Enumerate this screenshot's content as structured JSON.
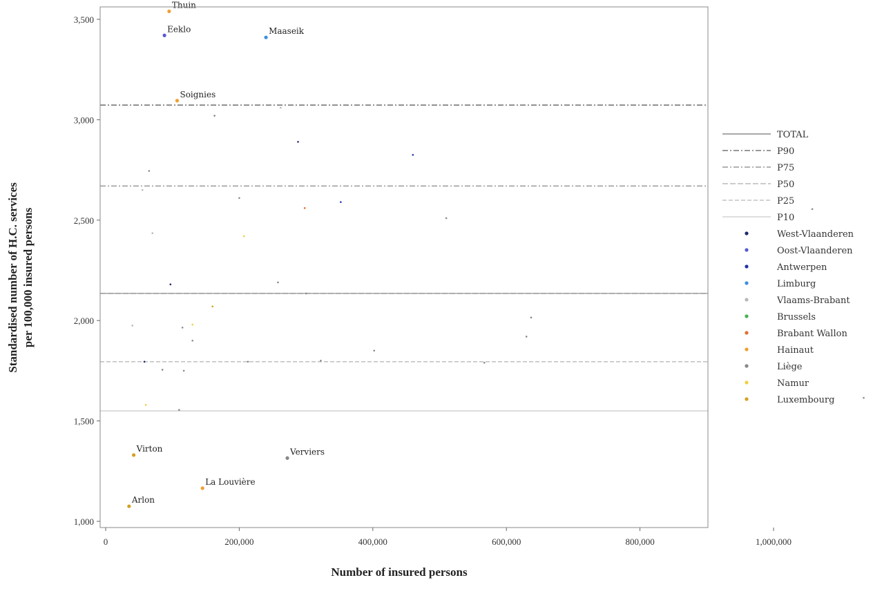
{
  "chart_data": {
    "type": "scatter",
    "title": "",
    "xlabel": "Number of insured persons",
    "ylabel_lines": [
      "Standardised number of H.C. services",
      "per 100,000 insured persons"
    ],
    "xlim": [
      -10000,
      1140000
    ],
    "ylim": [
      980,
      3560
    ],
    "x_ticks": [
      0,
      200000,
      400000,
      600000,
      800000,
      1000000
    ],
    "x_tick_labels": [
      "0",
      "200,000",
      "400,000",
      "600,000",
      "800,000",
      "1,000,000"
    ],
    "y_ticks": [
      1000,
      1500,
      2000,
      2500,
      3000,
      3500
    ],
    "y_tick_labels": [
      "1,000",
      "1,500",
      "2,000",
      "2,500",
      "3,000",
      "3,500"
    ],
    "grid": false,
    "legend_position": "right",
    "reference_lines": [
      {
        "name": "TOTAL",
        "y": 2135,
        "color": "#8c8c8c",
        "dash": ""
      },
      {
        "name": "P90",
        "y": 3073,
        "color": "#777777",
        "dash": "8 3 2 3"
      },
      {
        "name": "P75",
        "y": 2670,
        "color": "#999999",
        "dash": "8 3 2 3"
      },
      {
        "name": "P50",
        "y": 2135,
        "color": "#bbbbbb",
        "dash": "8 3"
      },
      {
        "name": "P25",
        "y": 1795,
        "color": "#c4c4c4",
        "dash": "6 3"
      },
      {
        "name": "P10",
        "y": 1550,
        "color": "#d4d4d4",
        "dash": ""
      }
    ],
    "provinces": [
      {
        "name": "West-Vlaanderen",
        "color": "#1f2a6b"
      },
      {
        "name": "Oost-Vlaanderen",
        "color": "#5a5ad0"
      },
      {
        "name": "Antwerpen",
        "color": "#2233aa"
      },
      {
        "name": "Limburg",
        "color": "#3b8fe0"
      },
      {
        "name": "Vlaams-Brabant",
        "color": "#b8b8b8"
      },
      {
        "name": "Brussels",
        "color": "#4caf50"
      },
      {
        "name": "Brabant Wallon",
        "color": "#e07030"
      },
      {
        "name": "Hainaut",
        "color": "#f0a030"
      },
      {
        "name": "Liège",
        "color": "#888888"
      },
      {
        "name": "Namur",
        "color": "#f0d040"
      },
      {
        "name": "Luxembourg",
        "color": "#d4a020"
      }
    ],
    "points": [
      {
        "x": 95000,
        "y": 3540,
        "province": "Hainaut",
        "label": "Thuin"
      },
      {
        "x": 88000,
        "y": 3420,
        "province": "Oost-Vlaanderen",
        "label": "Eeklo"
      },
      {
        "x": 240000,
        "y": 3410,
        "province": "Limburg",
        "label": "Maaseik"
      },
      {
        "x": 107000,
        "y": 3095,
        "province": "Hainaut",
        "label": "Soignies"
      },
      {
        "x": 42000,
        "y": 1330,
        "province": "Luxembourg",
        "label": "Virton"
      },
      {
        "x": 272000,
        "y": 1315,
        "province": "Liège",
        "label": "Verviers"
      },
      {
        "x": 145000,
        "y": 1165,
        "province": "Hainaut",
        "label": "La Louvière"
      },
      {
        "x": 35000,
        "y": 1075,
        "province": "Luxembourg",
        "label": "Arlon"
      },
      {
        "x": 262000,
        "y": 3060,
        "province": "Vlaams-Brabant"
      },
      {
        "x": 163000,
        "y": 3020,
        "province": "Liège"
      },
      {
        "x": 288000,
        "y": 2890,
        "province": "West-Vlaanderen"
      },
      {
        "x": 460000,
        "y": 2825,
        "province": "Antwerpen"
      },
      {
        "x": 65000,
        "y": 2745,
        "province": "Liège"
      },
      {
        "x": 55000,
        "y": 2650,
        "province": "Vlaams-Brabant"
      },
      {
        "x": 200000,
        "y": 2610,
        "province": "Liège"
      },
      {
        "x": 352000,
        "y": 2590,
        "province": "Antwerpen"
      },
      {
        "x": 298000,
        "y": 2560,
        "province": "Brabant Wallon"
      },
      {
        "x": 1058000,
        "y": 2555,
        "province": "Liège"
      },
      {
        "x": 510000,
        "y": 2510,
        "province": "Liège"
      },
      {
        "x": 70000,
        "y": 2435,
        "province": "Vlaams-Brabant"
      },
      {
        "x": 207000,
        "y": 2420,
        "province": "Namur"
      },
      {
        "x": 258000,
        "y": 2190,
        "province": "Liège"
      },
      {
        "x": 97000,
        "y": 2180,
        "province": "West-Vlaanderen"
      },
      {
        "x": 300000,
        "y": 2135,
        "province": "Liège"
      },
      {
        "x": 160000,
        "y": 2070,
        "province": "Luxembourg"
      },
      {
        "x": 637000,
        "y": 2015,
        "province": "Liège"
      },
      {
        "x": 40000,
        "y": 1975,
        "province": "Vlaams-Brabant"
      },
      {
        "x": 130000,
        "y": 1980,
        "province": "Namur"
      },
      {
        "x": 115000,
        "y": 1965,
        "province": "Liège"
      },
      {
        "x": 630000,
        "y": 1920,
        "province": "Liège"
      },
      {
        "x": 130000,
        "y": 1900,
        "province": "Liège"
      },
      {
        "x": 402000,
        "y": 1850,
        "province": "Liège"
      },
      {
        "x": 322000,
        "y": 1800,
        "province": "Liège"
      },
      {
        "x": 58000,
        "y": 1795,
        "province": "West-Vlaanderen"
      },
      {
        "x": 213000,
        "y": 1795,
        "province": "Liège"
      },
      {
        "x": 567000,
        "y": 1790,
        "province": "Liège"
      },
      {
        "x": 85000,
        "y": 1755,
        "province": "Liège"
      },
      {
        "x": 117000,
        "y": 1750,
        "province": "Liège"
      },
      {
        "x": 60000,
        "y": 1580,
        "province": "Namur"
      },
      {
        "x": 110000,
        "y": 1555,
        "province": "Liège"
      },
      {
        "x": 1135000,
        "y": 1615,
        "province": "Liège"
      }
    ]
  }
}
